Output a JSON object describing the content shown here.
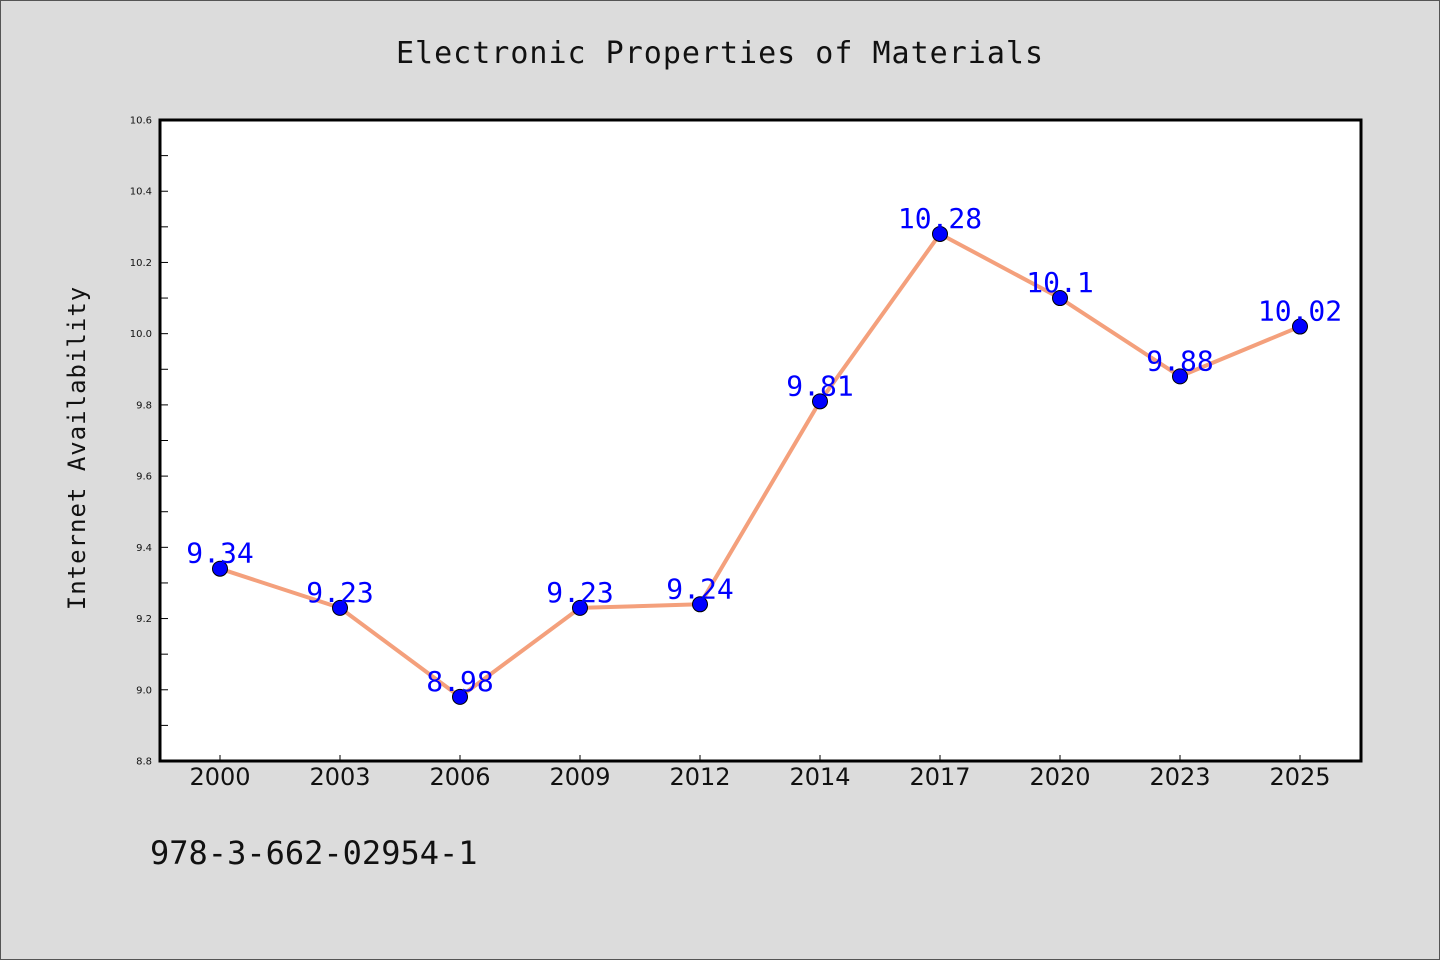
{
  "chart_data": {
    "type": "line",
    "title": "Electronic Properties of Materials",
    "xlabel": "",
    "ylabel": "Internet Availability",
    "categories": [
      "2000",
      "2003",
      "2006",
      "2009",
      "2012",
      "2014",
      "2017",
      "2020",
      "2023",
      "2025"
    ],
    "values": [
      9.34,
      9.23,
      8.98,
      9.23,
      9.24,
      9.81,
      10.28,
      10.1,
      9.88,
      10.02
    ],
    "data_labels": [
      "9.34",
      "9.23",
      "8.98",
      "9.23",
      "9.24",
      "9.81",
      "10.28",
      "10.1",
      "9.88",
      "10.02"
    ],
    "ylim": [
      8.8,
      10.6
    ],
    "yticks": [
      "8.8",
      "9.0",
      "9.2",
      "9.4",
      "9.6",
      "9.8",
      "10.0",
      "10.2",
      "10.4",
      "10.6"
    ],
    "grid": false,
    "legend": "none",
    "line_color": "#f4a07c",
    "marker_color": "#0000ff",
    "label_color": "#0000ff"
  },
  "footer_text": "978-3-662-02954-1"
}
